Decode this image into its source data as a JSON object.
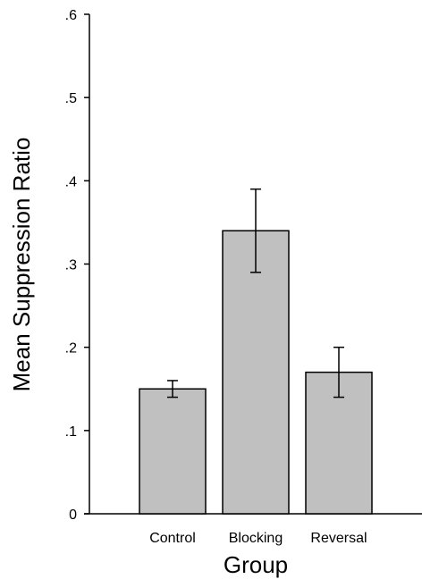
{
  "chart_data": {
    "type": "bar",
    "title": "",
    "xlabel": "Group",
    "ylabel": "Mean Suppression Ratio",
    "categories": [
      "Control",
      "Blocking",
      "Reversal"
    ],
    "values": [
      0.15,
      0.34,
      0.17
    ],
    "error_low": [
      0.14,
      0.29,
      0.14
    ],
    "error_high": [
      0.16,
      0.39,
      0.2
    ],
    "ylim": [
      0,
      0.6
    ],
    "yticks": [
      0,
      0.1,
      0.2,
      0.3,
      0.4,
      0.5,
      0.6
    ],
    "ytick_labels": [
      "0",
      ".1",
      ".2",
      ".3",
      ".4",
      ".5",
      ".6"
    ],
    "grid": false,
    "bar_color": "#c0c0c0",
    "edge_color": "#000000"
  }
}
